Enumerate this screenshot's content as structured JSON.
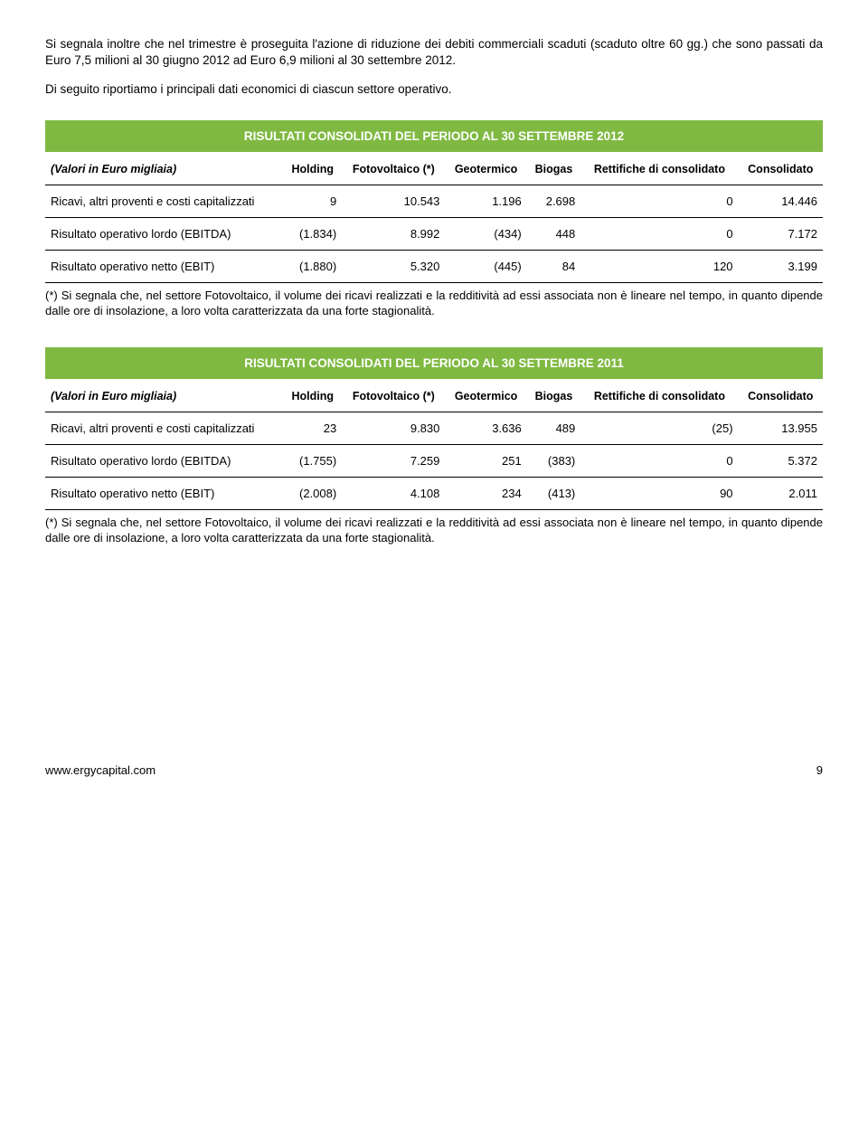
{
  "paragraphs": {
    "p1": "Si segnala inoltre che nel trimestre è proseguita l'azione di riduzione dei debiti commerciali scaduti (scaduto oltre 60 gg.) che sono passati da Euro 7,5 milioni al 30 giugno 2012 ad Euro 6,9 milioni al 30 settembre 2012.",
    "p2": "Di seguito riportiamo i principali dati economici di ciascun settore operativo."
  },
  "tables": {
    "t2012": {
      "title": "RISULTATI CONSOLIDATI DEL PERIODO AL 30 SETTEMBRE 2012",
      "headers": [
        "(Valori in Euro migliaia)",
        "Holding",
        "Fotovoltaico (*)",
        "Geotermico",
        "Biogas",
        "Rettifiche di consolidato",
        "Consolidato"
      ],
      "rows": [
        [
          "Ricavi, altri proventi e costi capitalizzati",
          "9",
          "10.543",
          "1.196",
          "2.698",
          "0",
          "14.446"
        ],
        [
          "Risultato operativo lordo (EBITDA)",
          "(1.834)",
          "8.992",
          "(434)",
          "448",
          "0",
          "7.172"
        ],
        [
          "Risultato operativo netto (EBIT)",
          "(1.880)",
          "5.320",
          "(445)",
          "84",
          "120",
          "3.199"
        ]
      ]
    },
    "t2011": {
      "title": "RISULTATI CONSOLIDATI DEL PERIODO AL 30 SETTEMBRE 2011",
      "headers": [
        "(Valori in Euro migliaia)",
        "Holding",
        "Fotovoltaico (*)",
        "Geotermico",
        "Biogas",
        "Rettifiche di consolidato",
        "Consolidato"
      ],
      "rows": [
        [
          "Ricavi, altri proventi e costi capitalizzati",
          "23",
          "9.830",
          "3.636",
          "489",
          "(25)",
          "13.955"
        ],
        [
          "Risultato operativo lordo (EBITDA)",
          "(1.755)",
          "7.259",
          "251",
          "(383)",
          "0",
          "5.372"
        ],
        [
          "Risultato operativo netto (EBIT)",
          "(2.008)",
          "4.108",
          "234",
          "(413)",
          "90",
          "2.011"
        ]
      ]
    }
  },
  "footnote": "(*) Si segnala che, nel settore Fotovoltaico, il volume dei ricavi realizzati e la redditività ad essi associata non è lineare nel tempo, in quanto dipende dalle ore di insolazione, a loro volta caratterizzata da una forte stagionalità.",
  "footer": {
    "url": "www.ergycapital.com",
    "page": "9"
  },
  "colors": {
    "header_bg": "#7fb942",
    "header_fg": "#ffffff",
    "text": "#000000"
  }
}
